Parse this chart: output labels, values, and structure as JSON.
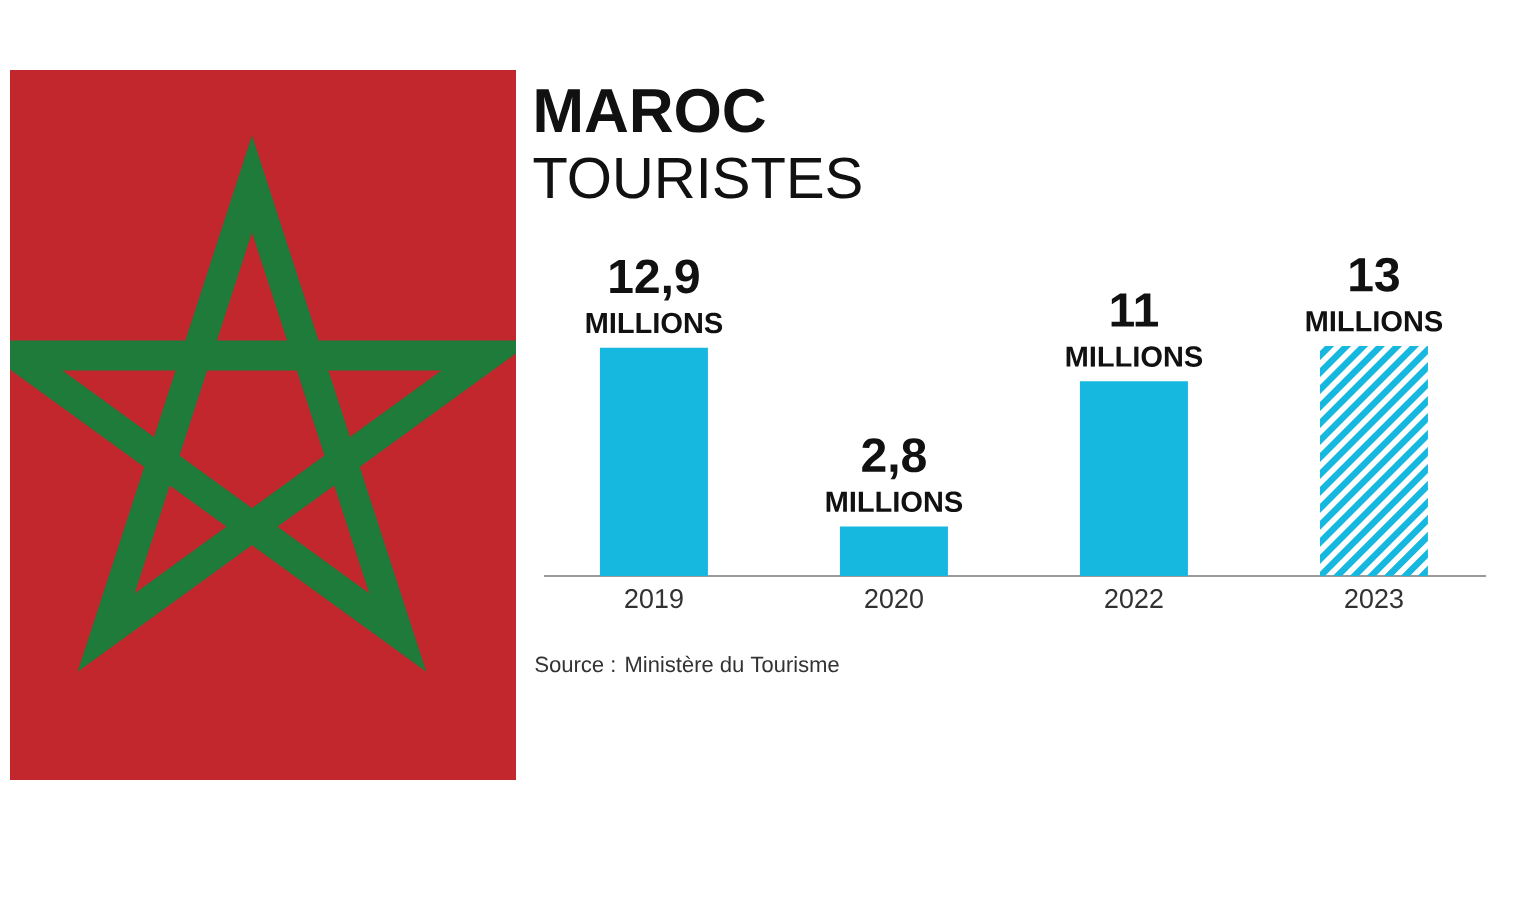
{
  "chart_data": {
    "type": "bar",
    "title": "MAROC",
    "subtitle": "TOURISTES",
    "categories": [
      "2019",
      "2020",
      "2022",
      "2023"
    ],
    "series": [
      {
        "color": "#17B8E0",
        "values": [
          12.9,
          2.8,
          11,
          null
        ],
        "value_labels": [
          "12,9 MILLIONS",
          "2,8 MILLIONS",
          "11 MILLIONS",
          null
        ]
      },
      {
        "color": "#17B8E0",
        "values": [
          null,
          null,
          null,
          13
        ],
        "value_labels": [
          null,
          null,
          null,
          "13 MILLIONS"
        ]
      }
    ],
    "tick_labels": "x",
    "annotations": [
      "Source : Ministère du Tourisme"
    ]
  }
}
